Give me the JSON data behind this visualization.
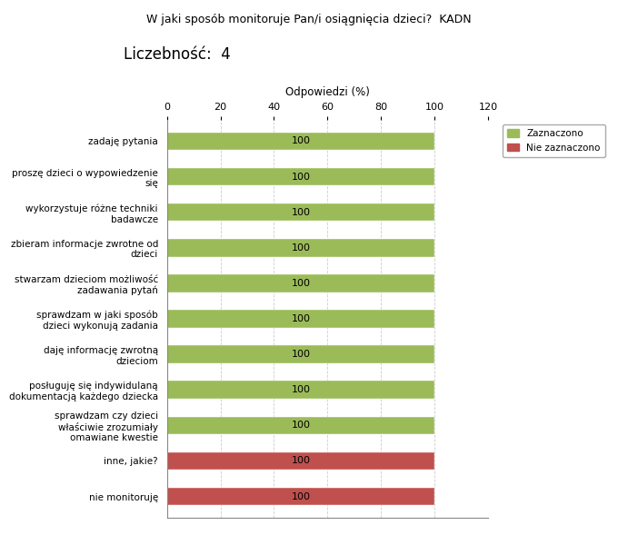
{
  "title": "W jaki sposób monitoruje Pan/i osiągnięcia dzieci?  KADN",
  "subtitle": "Liczebność:  4",
  "xlabel": "Odpowiedzi (%)",
  "xlim": [
    0,
    120
  ],
  "xticks": [
    0,
    20,
    40,
    60,
    80,
    100,
    120
  ],
  "categories": [
    "nie monitoruję",
    "inne, jakie?",
    "sprawdzam czy dzieci\nwłaściwie zrozumiały\nomawiane kwestie",
    "posługuję się indywidulaną\ndokumentacją każdego dziecka",
    "daję informację zwrotną\ndzieciom",
    "sprawdzam w jaki sposób\ndzieci wykonują zadania",
    "stwarzam dzieciom możliwość\nzadawania pytań",
    "zbieram informacje zwrotne od\ndzieci",
    "wykorzystuje różne techniki\nbadawcze",
    "proszę dzieci o wypowiedzenie\nsię",
    "zadaję pytania"
  ],
  "values_zaznaczono": [
    0,
    0,
    100,
    100,
    100,
    100,
    100,
    100,
    100,
    100,
    100
  ],
  "values_nie_zaznaczono": [
    100,
    100,
    0,
    0,
    0,
    0,
    0,
    0,
    0,
    0,
    0
  ],
  "color_green": "#9BBB59",
  "color_orange": "#C0504D",
  "bar_height": 0.5,
  "background_color": "#ffffff",
  "grid_color": "#cccccc",
  "label_fontsize": 7.5,
  "title_fontsize": 9,
  "subtitle_fontsize": 12,
  "xlabel_fontsize": 8.5,
  "value_label_fontsize": 8
}
